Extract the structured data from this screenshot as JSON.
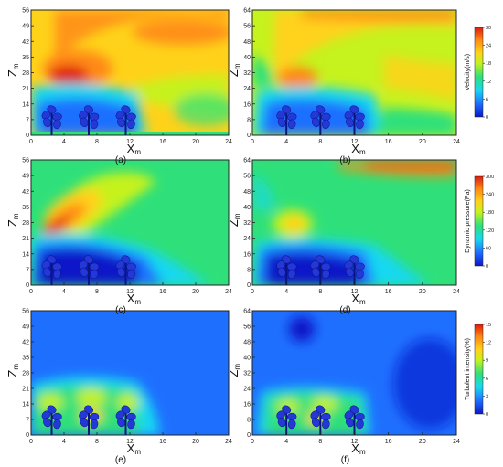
{
  "chart_data": [
    {
      "type": "heatmap",
      "label": "(a)",
      "xlabel": "X",
      "xsub": "m",
      "ylabel": "Z",
      "ysub": "m",
      "xticks": [
        "0",
        "4",
        "8",
        "12",
        "16",
        "20",
        "24"
      ],
      "yticks": [
        "7",
        "14",
        "21",
        "28",
        "35",
        "42",
        "49",
        "56"
      ],
      "xlim": [
        0,
        24
      ],
      "ylim": [
        0,
        56
      ],
      "field": "velocity",
      "trees_x": [
        2.5,
        7,
        11.5
      ]
    },
    {
      "type": "heatmap",
      "label": "(b)",
      "xlabel": "X",
      "xsub": "m",
      "ylabel": "Z",
      "ysub": "m",
      "xticks": [
        "0",
        "4",
        "8",
        "12",
        "16",
        "20",
        "24"
      ],
      "yticks": [
        "8",
        "16",
        "24",
        "32",
        "40",
        "48",
        "56",
        "64"
      ],
      "xlim": [
        0,
        24
      ],
      "ylim": [
        0,
        64
      ],
      "field": "velocity",
      "trees_x": [
        4,
        8,
        12
      ]
    },
    {
      "type": "heatmap",
      "label": "(c)",
      "xlabel": "X",
      "xsub": "m",
      "ylabel": "Z",
      "ysub": "m",
      "xticks": [
        "0",
        "4",
        "8",
        "12",
        "16",
        "20",
        "24"
      ],
      "yticks": [
        "7",
        "14",
        "21",
        "28",
        "35",
        "42",
        "49",
        "56"
      ],
      "xlim": [
        0,
        24
      ],
      "ylim": [
        0,
        56
      ],
      "field": "dynamic_pressure",
      "trees_x": [
        2.5,
        7,
        11.5
      ]
    },
    {
      "type": "heatmap",
      "label": "(d)",
      "xlabel": "X",
      "xsub": "m",
      "ylabel": "Z",
      "ysub": "m",
      "xticks": [
        "0",
        "4",
        "8",
        "12",
        "16",
        "20",
        "24"
      ],
      "yticks": [
        "8",
        "16",
        "24",
        "32",
        "40",
        "48",
        "56",
        "64"
      ],
      "xlim": [
        0,
        24
      ],
      "ylim": [
        0,
        64
      ],
      "field": "dynamic_pressure",
      "trees_x": [
        4,
        8,
        12
      ]
    },
    {
      "type": "heatmap",
      "label": "(e)",
      "xlabel": "X",
      "xsub": "m",
      "ylabel": "Z",
      "ysub": "m",
      "xticks": [
        "0",
        "4",
        "8",
        "12",
        "16",
        "20",
        "24"
      ],
      "yticks": [
        "7",
        "14",
        "21",
        "28",
        "35",
        "42",
        "49",
        "56"
      ],
      "xlim": [
        0,
        24
      ],
      "ylim": [
        0,
        56
      ],
      "field": "turbulent_intensity",
      "trees_x": [
        2.5,
        7,
        11.5
      ]
    },
    {
      "type": "heatmap",
      "label": "(f)",
      "xlabel": "X",
      "xsub": "m",
      "ylabel": "Z",
      "ysub": "m",
      "xticks": [
        "0",
        "4",
        "8",
        "12",
        "16",
        "20",
        "24"
      ],
      "yticks": [
        "8",
        "16",
        "24",
        "32",
        "40",
        "48",
        "56",
        "64"
      ],
      "xlim": [
        0,
        24
      ],
      "ylim": [
        0,
        64
      ],
      "field": "turbulent_intensity",
      "trees_x": [
        4,
        8,
        12
      ]
    }
  ],
  "colorbars": [
    {
      "title": "Velocity(m/s)",
      "ticks": [
        "0",
        "6",
        "12",
        "18",
        "24",
        "30"
      ],
      "range": [
        0,
        30
      ]
    },
    {
      "title": "Dynamic pressure(Pa)",
      "ticks": [
        "0",
        "60",
        "120",
        "180",
        "240",
        "300"
      ],
      "range": [
        0,
        300
      ]
    },
    {
      "title": "Turbulent intensity(%)",
      "ticks": [
        "0",
        "3",
        "6",
        "9",
        "12",
        "15"
      ],
      "range": [
        0,
        15
      ]
    }
  ],
  "colormap": [
    "#0a17c8",
    "#1f6fff",
    "#18d8f0",
    "#2fe07a",
    "#c6f21e",
    "#ffd21a",
    "#ff8a14",
    "#e01a0c"
  ]
}
